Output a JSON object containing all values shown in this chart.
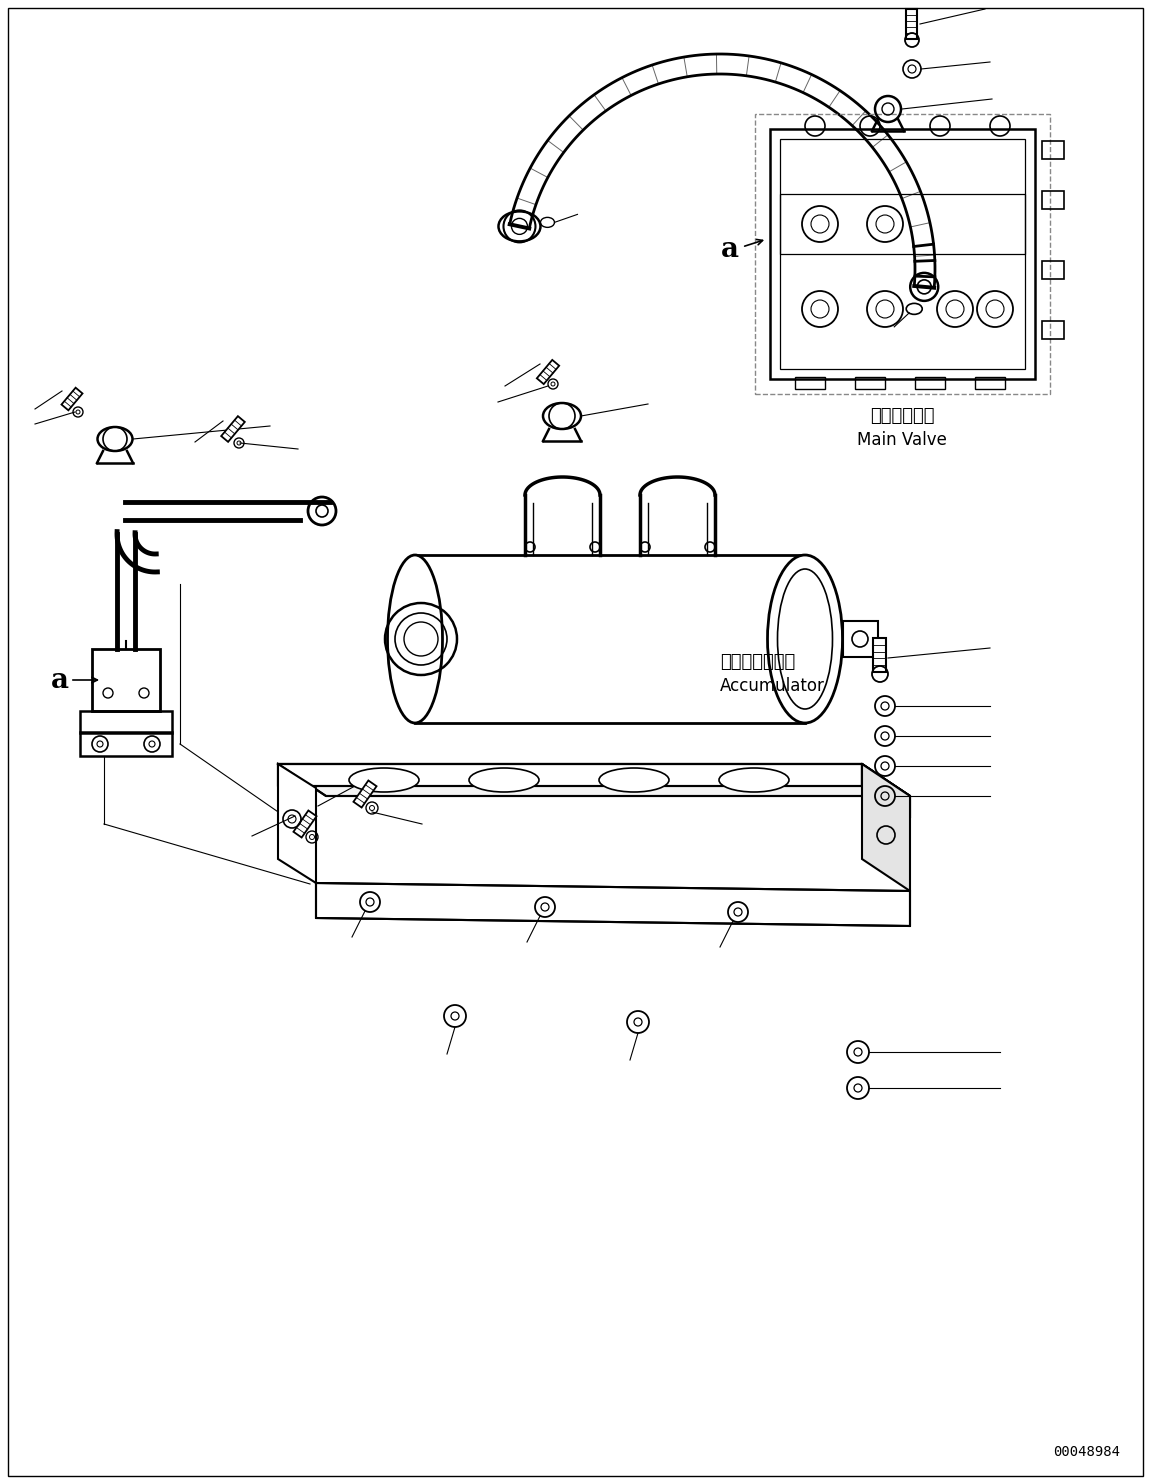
{
  "background_color": "#ffffff",
  "line_color": "#000000",
  "part_number": "00048984",
  "label_main_valve_jp": "メインバルブ",
  "label_main_valve_en": "Main Valve",
  "label_accumulator_jp": "アキュムレータ",
  "label_accumulator_en": "Accumulator",
  "label_a": "a",
  "fig_width": 11.51,
  "fig_height": 14.84,
  "dpi": 100,
  "xlim": [
    0,
    1151
  ],
  "ylim": [
    0,
    1484
  ]
}
